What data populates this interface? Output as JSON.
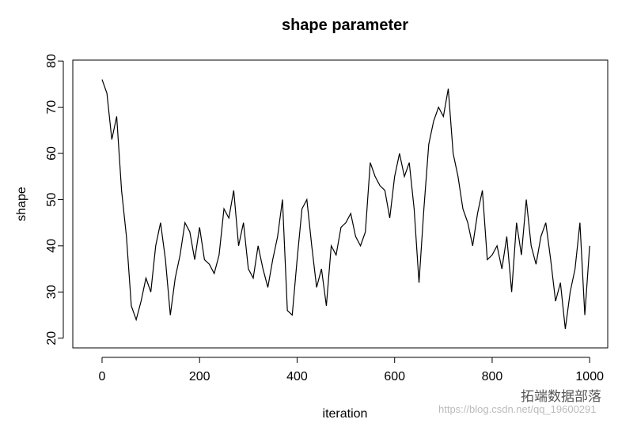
{
  "chart_data": {
    "type": "line",
    "title": "shape parameter",
    "x_label": "iteration",
    "y_label": "shape",
    "x": [
      0,
      10,
      20,
      30,
      40,
      50,
      60,
      70,
      80,
      90,
      100,
      110,
      120,
      130,
      140,
      150,
      160,
      170,
      180,
      190,
      200,
      210,
      220,
      230,
      240,
      250,
      260,
      270,
      280,
      290,
      300,
      310,
      320,
      330,
      340,
      350,
      360,
      370,
      380,
      390,
      400,
      410,
      420,
      430,
      440,
      450,
      460,
      470,
      480,
      490,
      500,
      510,
      520,
      530,
      540,
      550,
      560,
      570,
      580,
      590,
      600,
      610,
      620,
      630,
      640,
      650,
      660,
      670,
      680,
      690,
      700,
      710,
      720,
      730,
      740,
      750,
      760,
      770,
      780,
      790,
      800,
      810,
      820,
      830,
      840,
      850,
      860,
      870,
      880,
      890,
      900,
      910,
      920,
      930,
      940,
      950,
      960,
      970,
      980,
      990,
      1000
    ],
    "series": [
      {
        "name": "shape",
        "color": "#000000",
        "values": [
          76,
          73,
          63,
          68,
          52,
          42,
          27,
          24,
          28,
          33,
          30,
          40,
          45,
          37,
          25,
          33,
          38,
          45,
          43,
          37,
          44,
          37,
          36,
          34,
          38,
          48,
          46,
          52,
          40,
          45,
          35,
          33,
          40,
          35,
          31,
          37,
          42,
          50,
          26,
          25,
          37,
          48,
          50,
          40,
          31,
          35,
          27,
          40,
          38,
          44,
          45,
          47,
          42,
          40,
          43,
          58,
          55,
          53,
          52,
          46,
          55,
          60,
          55,
          58,
          48,
          32,
          48,
          62,
          67,
          70,
          68,
          74,
          60,
          55,
          48,
          45,
          40,
          47,
          52,
          37,
          38,
          40,
          35,
          42,
          30,
          45,
          38,
          50,
          40,
          36,
          42,
          45,
          37,
          28,
          32,
          22,
          30,
          35,
          45,
          25,
          40
        ]
      }
    ],
    "xlim": [
      -60,
      1037
    ],
    "ylim": [
      17.9,
      80.2
    ],
    "xticks": [
      0,
      200,
      400,
      600,
      800,
      1000
    ],
    "yticks": [
      20,
      30,
      40,
      50,
      60,
      70,
      80
    ],
    "annotations": [
      "拓端数据部落",
      "https://blog.csdn.net/qq_19600291"
    ]
  }
}
